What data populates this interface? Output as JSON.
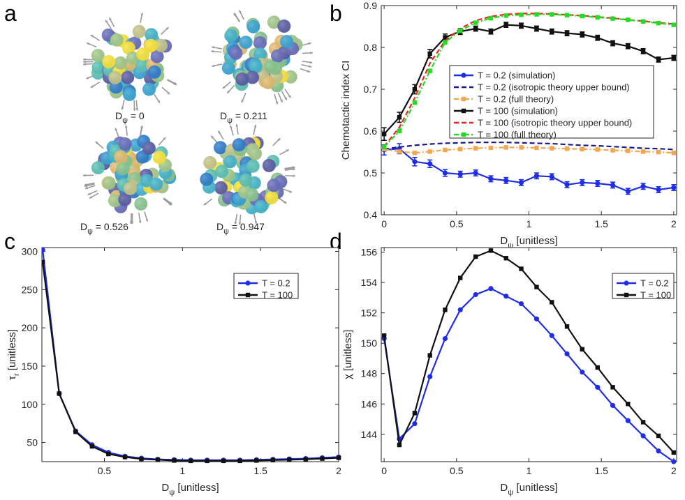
{
  "panel_labels": {
    "a": "a",
    "b": "b",
    "c": "c",
    "d": "d"
  },
  "panel_a": {
    "cluster_labels": [
      "D  = 0",
      "D  = 0.211",
      "D  = 0.526",
      "D  = 0.947"
    ],
    "cluster_captions": [
      {
        "main": "D",
        "sub": "ψ",
        "val": " =   0"
      },
      {
        "main": "D",
        "sub": "ψ",
        "val": " = 0.211"
      },
      {
        "main": "D",
        "sub": "ψ",
        "val": " = 0.526"
      },
      {
        "main": "D",
        "sub": "ψ",
        "val": " = 0.947"
      }
    ],
    "cell_palette": [
      "#3aa8d8",
      "#44b8d0",
      "#5cc6b8",
      "#8cc890",
      "#a6cd8c",
      "#c9c98b",
      "#e8c070",
      "#ffe93a",
      "#5b5ea8",
      "#6a6fc0",
      "#2f7fd0"
    ]
  },
  "colors": {
    "blue": "#1f2ee6",
    "navy": "#1a1a8c",
    "orange": "#f0a850",
    "black": "#111111",
    "red": "#ee2222",
    "green": "#22dd22"
  },
  "chart_data": [
    {
      "panel": "b",
      "type": "line",
      "title": "",
      "xlabel_main": "D",
      "xlabel_sub": "ψ",
      "xlabel_rest": " [unitless]",
      "ylabel": "Chemotactic index CI",
      "xlim": [
        -0.02,
        2.02
      ],
      "ylim": [
        0.4,
        0.9
      ],
      "xticks": [
        0,
        0.5,
        1,
        1.5,
        2
      ],
      "xtick_labels": [
        "0",
        "0.5",
        "1",
        "1.5",
        "2"
      ],
      "yticks": [
        0.4,
        0.5,
        0.6,
        0.7,
        0.8,
        0.9
      ],
      "ytick_labels": [
        "0.4",
        "0.5",
        "0.6",
        "0.7",
        "0.8",
        "0.9"
      ],
      "legend_position": "center-right",
      "x": [
        0,
        0.105,
        0.211,
        0.316,
        0.421,
        0.526,
        0.632,
        0.737,
        0.842,
        0.947,
        1.053,
        1.158,
        1.263,
        1.368,
        1.474,
        1.579,
        1.684,
        1.789,
        1.895,
        2.0
      ],
      "series": [
        {
          "name": "T = 0.2 (simulation)",
          "color": "#1f2ee6",
          "style": "solid",
          "marker": "circle",
          "values": [
            0.555,
            0.558,
            0.527,
            0.522,
            0.5,
            0.497,
            0.5,
            0.486,
            0.482,
            0.477,
            0.493,
            0.491,
            0.472,
            0.477,
            0.475,
            0.471,
            0.456,
            0.468,
            0.46,
            0.465
          ],
          "errors": [
            0.012,
            0.012,
            0.01,
            0.009,
            0.008,
            0.007,
            0.007,
            0.007,
            0.007,
            0.007,
            0.007,
            0.007,
            0.007,
            0.007,
            0.007,
            0.007,
            0.007,
            0.007,
            0.007,
            0.007
          ]
        },
        {
          "name": "T = 0.2 (isotropic theory upper bound)",
          "color": "#1a1a8c",
          "style": "dashed",
          "marker": "none",
          "values": [
            0.557,
            0.562,
            0.566,
            0.569,
            0.571,
            0.572,
            0.573,
            0.573,
            0.573,
            0.572,
            0.571,
            0.57,
            0.568,
            0.566,
            0.565,
            0.563,
            0.561,
            0.559,
            0.558,
            0.556
          ],
          "errors": []
        },
        {
          "name": "T = 0.2 (full theory)",
          "color": "#f0a850",
          "style": "dashdot",
          "marker": "square",
          "values": [
            0.557,
            0.551,
            0.548,
            0.551,
            0.555,
            0.557,
            0.559,
            0.56,
            0.561,
            0.561,
            0.56,
            0.559,
            0.558,
            0.557,
            0.556,
            0.554,
            0.553,
            0.551,
            0.55,
            0.548
          ],
          "errors": []
        },
        {
          "name": "T = 100 (simulation)",
          "color": "#111111",
          "style": "solid",
          "marker": "square",
          "values": [
            0.593,
            0.633,
            0.7,
            0.785,
            0.824,
            0.838,
            0.845,
            0.838,
            0.854,
            0.852,
            0.845,
            0.838,
            0.834,
            0.831,
            0.823,
            0.81,
            0.803,
            0.791,
            0.771,
            0.775
          ],
          "errors": [
            0.015,
            0.012,
            0.011,
            0.01,
            0.008,
            0.007,
            0.006,
            0.006,
            0.006,
            0.006,
            0.006,
            0.006,
            0.006,
            0.006,
            0.006,
            0.006,
            0.006,
            0.006,
            0.006,
            0.006
          ]
        },
        {
          "name": "T = 100 (isotropic theory upper bound)",
          "color": "#ee2222",
          "style": "dashed",
          "marker": "none",
          "values": [
            0.563,
            0.609,
            0.679,
            0.762,
            0.816,
            0.845,
            0.864,
            0.874,
            0.879,
            0.881,
            0.881,
            0.88,
            0.878,
            0.876,
            0.873,
            0.87,
            0.866,
            0.863,
            0.859,
            0.856
          ],
          "errors": []
        },
        {
          "name": "T = 100 (full theory)",
          "color": "#22dd22",
          "style": "dashdot",
          "marker": "square",
          "values": [
            0.562,
            0.6,
            0.668,
            0.744,
            0.812,
            0.84,
            0.859,
            0.87,
            0.876,
            0.878,
            0.879,
            0.879,
            0.877,
            0.875,
            0.872,
            0.869,
            0.866,
            0.862,
            0.858,
            0.854
          ],
          "errors": []
        }
      ]
    },
    {
      "panel": "c",
      "type": "line",
      "title": "",
      "xlabel_main": "D",
      "xlabel_sub": "ψ",
      "xlabel_rest": " [unitless]",
      "ylabel_main": "τ",
      "ylabel_sub": "r",
      "ylabel_rest": " [unitless]",
      "xlim": [
        0.1,
        2.0
      ],
      "ylim": [
        25,
        305
      ],
      "xticks": [
        0.5,
        1,
        1.5,
        2
      ],
      "xtick_labels": [
        "0.5",
        "1",
        "1.5",
        "2"
      ],
      "yticks": [
        50,
        100,
        150,
        200,
        250,
        300
      ],
      "ytick_labels": [
        "50",
        "100",
        "150",
        "200",
        "250",
        "300"
      ],
      "legend_position": "upper-right",
      "x": [
        0.105,
        0.211,
        0.316,
        0.421,
        0.526,
        0.632,
        0.737,
        0.842,
        0.947,
        1.053,
        1.158,
        1.263,
        1.368,
        1.474,
        1.579,
        1.684,
        1.789,
        1.895,
        2.0
      ],
      "series": [
        {
          "name": "T = 0.2",
          "color": "#1f2ee6",
          "marker": "circle",
          "values": [
            302,
            114,
            65,
            47,
            37,
            32,
            29.5,
            28,
            27.5,
            27,
            27,
            27,
            27,
            27.5,
            28,
            28.5,
            29,
            30,
            31
          ]
        },
        {
          "name": "T = 100",
          "color": "#111111",
          "marker": "square",
          "values": [
            286,
            114,
            64,
            45,
            35,
            31,
            28.5,
            27.5,
            26.5,
            26,
            26,
            26,
            26,
            26.5,
            27,
            27.5,
            28,
            29,
            30
          ]
        }
      ]
    },
    {
      "panel": "d",
      "type": "line",
      "title": "",
      "xlabel_main": "D",
      "xlabel_sub": "ψ",
      "xlabel_rest": " [unitless]",
      "ylabel": "χ [unitless]",
      "xlim": [
        -0.02,
        2.02
      ],
      "ylim": [
        142.2,
        156.3
      ],
      "xticks": [
        0,
        0.5,
        1,
        1.5,
        2
      ],
      "xtick_labels": [
        "0",
        "0.5",
        "1",
        "1.5",
        "2"
      ],
      "yticks": [
        144,
        146,
        148,
        150,
        152,
        154,
        156
      ],
      "ytick_labels": [
        "144",
        "146",
        "148",
        "150",
        "152",
        "154",
        "156"
      ],
      "legend_position": "upper-right",
      "x": [
        0,
        0.105,
        0.211,
        0.316,
        0.421,
        0.526,
        0.632,
        0.737,
        0.842,
        0.947,
        1.053,
        1.158,
        1.263,
        1.368,
        1.474,
        1.579,
        1.684,
        1.789,
        1.895,
        2.0
      ],
      "series": [
        {
          "name": "T = 0.2",
          "color": "#1f2ee6",
          "marker": "circle",
          "values": [
            150.3,
            143.7,
            144.7,
            147.8,
            150.3,
            152.2,
            153.2,
            153.6,
            153.1,
            152.6,
            151.6,
            150.5,
            149.3,
            148.1,
            147.1,
            145.9,
            144.9,
            143.9,
            142.9,
            142.2
          ]
        },
        {
          "name": "T = 100",
          "color": "#111111",
          "marker": "square",
          "values": [
            150.5,
            143.3,
            145.4,
            149.2,
            152.2,
            154.3,
            155.7,
            156.1,
            155.6,
            154.9,
            153.7,
            152.7,
            151.1,
            149.6,
            148.4,
            147.1,
            146.0,
            144.8,
            143.9,
            142.8
          ]
        }
      ]
    }
  ]
}
